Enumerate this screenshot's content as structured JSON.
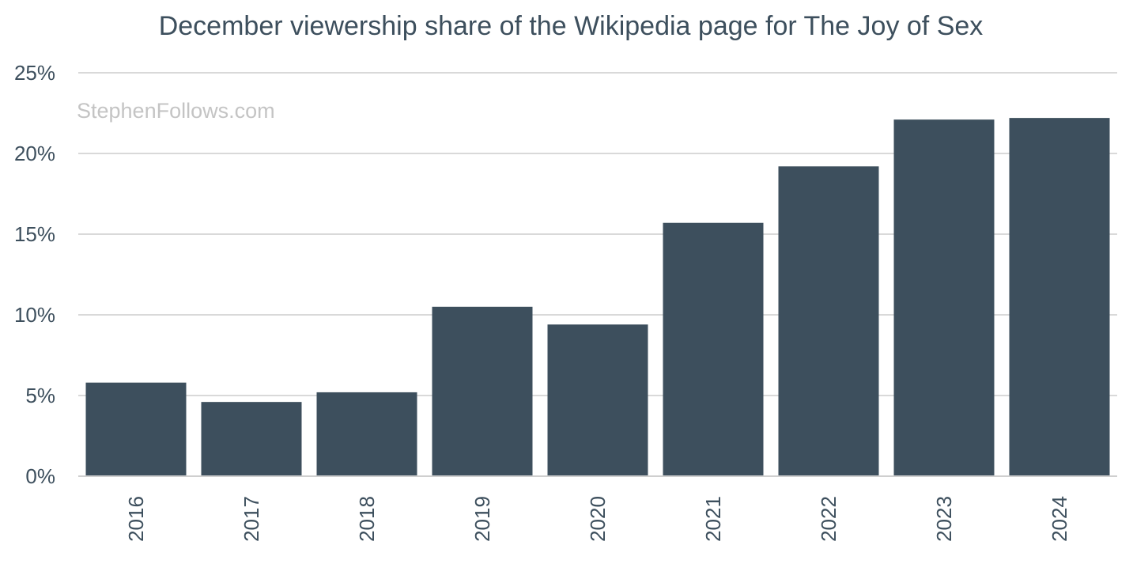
{
  "chart_data": {
    "type": "bar",
    "title": "December viewership share of the Wikipedia page for The Joy of Sex",
    "watermark": "StephenFollows.com",
    "categories": [
      "2016",
      "2017",
      "2018",
      "2019",
      "2020",
      "2021",
      "2022",
      "2023",
      "2024"
    ],
    "values": [
      5.8,
      4.6,
      5.2,
      10.5,
      9.4,
      15.7,
      19.2,
      22.1,
      22.2
    ],
    "value_unit": "%",
    "ylim": [
      0,
      25
    ],
    "yticks": [
      0,
      5,
      10,
      15,
      20,
      25
    ],
    "ytick_labels": [
      "0%",
      "5%",
      "10%",
      "15%",
      "20%",
      "25%"
    ],
    "xlabel": "",
    "ylabel": "",
    "grid": true,
    "legend": "none",
    "colors": {
      "bar": "#3d4f5d",
      "text": "#3d4f5d",
      "grid": "#d9d9d9",
      "watermark": "#c4c4c4"
    }
  }
}
